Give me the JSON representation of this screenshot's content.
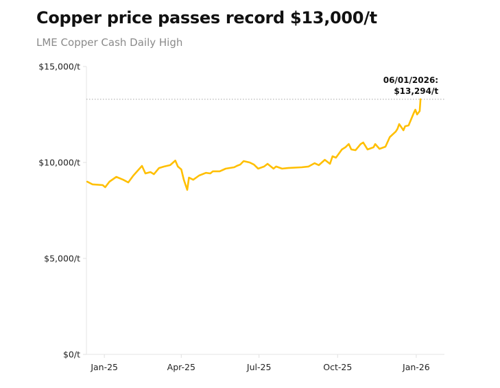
{
  "chart_data": {
    "type": "line",
    "title": "Copper price passes record $13,000/t",
    "subtitle": "LME Copper Cash Daily High",
    "xlabel": "",
    "ylabel": "",
    "ylim": [
      0,
      15000
    ],
    "xlim": [
      "2024-12-11",
      "2026-02-03"
    ],
    "grid": false,
    "line_color": "#FFBF00",
    "y_ticks": [
      {
        "value": 0,
        "label": "$0/t"
      },
      {
        "value": 5000,
        "label": "$5,000/t"
      },
      {
        "value": 10000,
        "label": "$10,000/t"
      },
      {
        "value": 15000,
        "label": "$15,000/t"
      }
    ],
    "x_ticks": [
      {
        "value": "2025-01-01",
        "label": "Jan-25"
      },
      {
        "value": "2025-04-01",
        "label": "Apr-25"
      },
      {
        "value": "2025-07-01",
        "label": "Jul-25"
      },
      {
        "value": "2025-10-01",
        "label": "Oct-25"
      },
      {
        "value": "2026-01-01",
        "label": "Jan-26"
      }
    ],
    "reference_line": {
      "value": 13294,
      "style": "dotted"
    },
    "annotation": {
      "date": "2026-01-06",
      "line1": "06/01/2026:",
      "line2": "$13,294/t"
    },
    "series": [
      {
        "points": [
          [
            "2024-12-12",
            9000
          ],
          [
            "2024-12-18",
            8860
          ],
          [
            "2024-12-30",
            8820
          ],
          [
            "2025-01-02",
            8710
          ],
          [
            "2025-01-07",
            9000
          ],
          [
            "2025-01-15",
            9250
          ],
          [
            "2025-01-23",
            9100
          ],
          [
            "2025-01-29",
            8960
          ],
          [
            "2025-02-04",
            9320
          ],
          [
            "2025-02-14",
            9820
          ],
          [
            "2025-02-18",
            9430
          ],
          [
            "2025-02-24",
            9500
          ],
          [
            "2025-02-28",
            9390
          ],
          [
            "2025-03-06",
            9710
          ],
          [
            "2025-03-12",
            9790
          ],
          [
            "2025-03-19",
            9860
          ],
          [
            "2025-03-25",
            10100
          ],
          [
            "2025-03-28",
            9790
          ],
          [
            "2025-04-01",
            9640
          ],
          [
            "2025-04-04",
            9100
          ],
          [
            "2025-04-08",
            8570
          ],
          [
            "2025-04-10",
            9210
          ],
          [
            "2025-04-15",
            9100
          ],
          [
            "2025-04-22",
            9320
          ],
          [
            "2025-04-30",
            9460
          ],
          [
            "2025-05-05",
            9430
          ],
          [
            "2025-05-08",
            9540
          ],
          [
            "2025-05-16",
            9540
          ],
          [
            "2025-05-23",
            9680
          ],
          [
            "2025-06-02",
            9750
          ],
          [
            "2025-06-05",
            9820
          ],
          [
            "2025-06-09",
            9890
          ],
          [
            "2025-06-13",
            10070
          ],
          [
            "2025-06-20",
            10000
          ],
          [
            "2025-06-25",
            9890
          ],
          [
            "2025-06-30",
            9680
          ],
          [
            "2025-07-07",
            9790
          ],
          [
            "2025-07-11",
            9930
          ],
          [
            "2025-07-18",
            9680
          ],
          [
            "2025-07-21",
            9790
          ],
          [
            "2025-07-28",
            9680
          ],
          [
            "2025-08-04",
            9710
          ],
          [
            "2025-08-20",
            9750
          ],
          [
            "2025-08-28",
            9790
          ],
          [
            "2025-09-04",
            9960
          ],
          [
            "2025-09-09",
            9860
          ],
          [
            "2025-09-16",
            10140
          ],
          [
            "2025-09-22",
            9930
          ],
          [
            "2025-09-25",
            10320
          ],
          [
            "2025-09-29",
            10250
          ],
          [
            "2025-10-06",
            10680
          ],
          [
            "2025-10-10",
            10790
          ],
          [
            "2025-10-14",
            10960
          ],
          [
            "2025-10-17",
            10680
          ],
          [
            "2025-10-22",
            10640
          ],
          [
            "2025-10-28",
            10960
          ],
          [
            "2025-10-31",
            11040
          ],
          [
            "2025-11-05",
            10680
          ],
          [
            "2025-11-12",
            10790
          ],
          [
            "2025-11-14",
            10960
          ],
          [
            "2025-11-19",
            10710
          ],
          [
            "2025-11-26",
            10820
          ],
          [
            "2025-12-01",
            11320
          ],
          [
            "2025-12-08",
            11610
          ],
          [
            "2025-12-10",
            11750
          ],
          [
            "2025-12-12",
            12000
          ],
          [
            "2025-12-17",
            11680
          ],
          [
            "2025-12-19",
            11890
          ],
          [
            "2025-12-23",
            11930
          ],
          [
            "2025-12-29",
            12570
          ],
          [
            "2025-12-31",
            12750
          ],
          [
            "2026-01-02",
            12500
          ],
          [
            "2026-01-05",
            12680
          ],
          [
            "2026-01-06",
            13294
          ]
        ]
      }
    ]
  }
}
